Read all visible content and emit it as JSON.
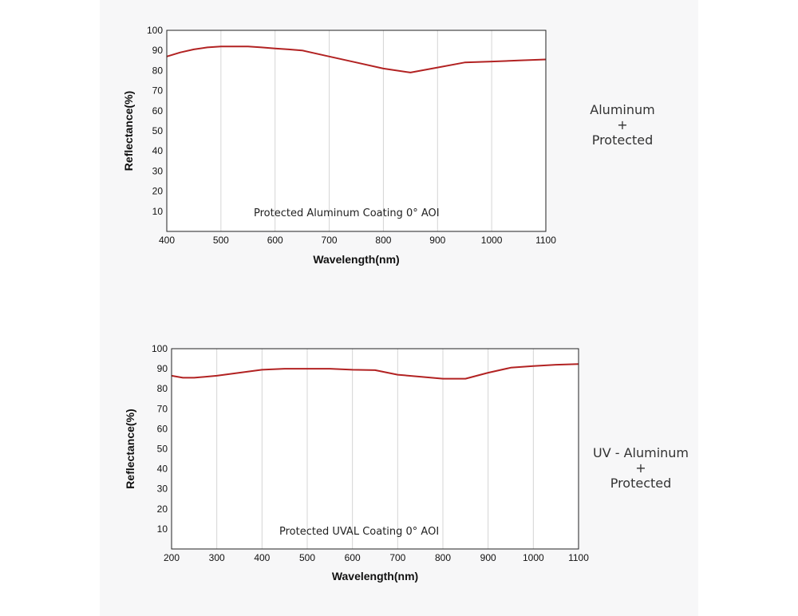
{
  "chart_data": [
    {
      "type": "line",
      "xlabel": "Wavelength(nm)",
      "ylabel": "Reflectance(%)",
      "annotation": "Protected Aluminum Coating  0°  AOI",
      "side_label": [
        "Aluminum",
        "+",
        "Protected"
      ],
      "xlim": [
        400,
        1100
      ],
      "ylim": [
        0,
        100
      ],
      "xticks": [
        400,
        500,
        600,
        700,
        800,
        900,
        1000,
        1100
      ],
      "yticks": [
        10,
        20,
        30,
        40,
        50,
        60,
        70,
        80,
        90,
        100
      ],
      "line_color": "#b22222",
      "grid": "vertical",
      "series": [
        {
          "x": [
            400,
            425,
            450,
            475,
            500,
            525,
            550,
            575,
            600,
            625,
            650,
            700,
            750,
            800,
            850,
            900,
            950,
            1000,
            1050,
            1100
          ],
          "y": [
            87,
            89,
            90.5,
            91.5,
            92,
            92,
            92,
            91.5,
            91,
            90.5,
            90,
            87,
            84,
            81,
            79,
            81.5,
            84,
            84.5,
            85,
            85.5
          ]
        }
      ]
    },
    {
      "type": "line",
      "xlabel": "Wavelength(nm)",
      "ylabel": "Reflectance(%)",
      "annotation": "Protected UVAL Coating  0°  AOI",
      "side_label": [
        "UV - Aluminum",
        "+",
        "Protected"
      ],
      "xlim": [
        200,
        1100
      ],
      "ylim": [
        0,
        100
      ],
      "xticks": [
        200,
        300,
        400,
        500,
        600,
        700,
        800,
        900,
        1000,
        1100
      ],
      "yticks": [
        10,
        20,
        30,
        40,
        50,
        60,
        70,
        80,
        90,
        100
      ],
      "line_color": "#b22222",
      "grid": "vertical",
      "series": [
        {
          "x": [
            200,
            225,
            250,
            300,
            350,
            400,
            450,
            500,
            550,
            600,
            650,
            700,
            750,
            800,
            850,
            900,
            950,
            1000,
            1050,
            1100
          ],
          "y": [
            86.5,
            85.5,
            85.5,
            86.5,
            88,
            89.5,
            90,
            90,
            90,
            89.5,
            89.3,
            87,
            86,
            85,
            85,
            88,
            90.5,
            91.3,
            92,
            92.3
          ]
        }
      ]
    }
  ]
}
